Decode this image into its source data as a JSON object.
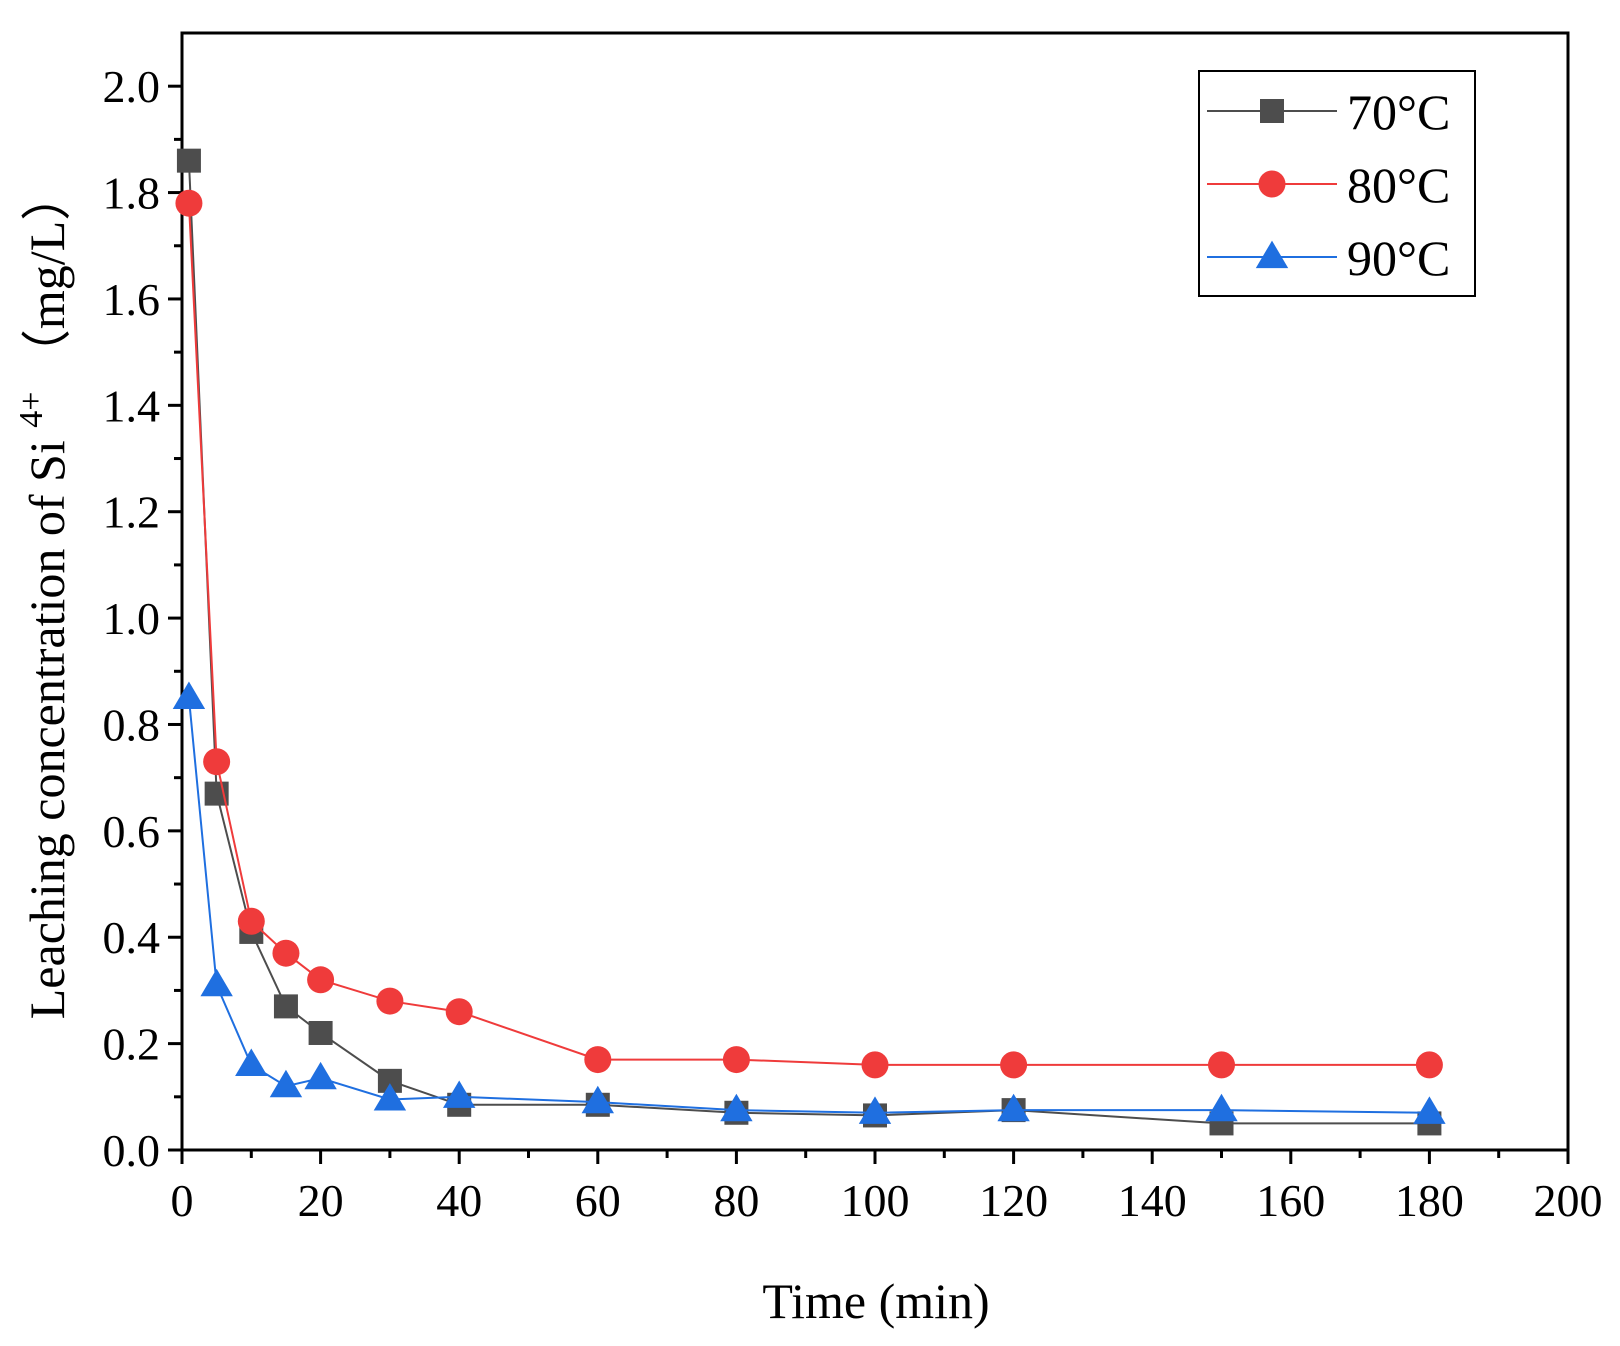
{
  "chart_data": {
    "type": "line",
    "title": "",
    "xlabel": "Time (min)",
    "ylabel": {
      "main": "Leaching concentration of Si",
      "superscript": "4+",
      "unit": "（mg/L）"
    },
    "xlim": [
      0,
      200
    ],
    "ylim": [
      0,
      2.1
    ],
    "xticks": [
      0,
      20,
      40,
      60,
      80,
      100,
      120,
      140,
      160,
      180,
      200
    ],
    "xtick_labels": [
      "0",
      "20",
      "40",
      "60",
      "80",
      "100",
      "120",
      "140",
      "160",
      "180",
      "200"
    ],
    "yticks": [
      0.0,
      0.2,
      0.4,
      0.6,
      0.8,
      1.0,
      1.2,
      1.4,
      1.6,
      1.8,
      2.0
    ],
    "ytick_labels": [
      "0.0",
      "0.2",
      "0.4",
      "0.6",
      "0.8",
      "1.0",
      "1.2",
      "1.4",
      "1.6",
      "1.8",
      "2.0"
    ],
    "grid": false,
    "legend_position": "top-right",
    "series": [
      {
        "name": "70°C",
        "color": "#4d4d4d",
        "marker": "square",
        "x": [
          1,
          5,
          10,
          15,
          20,
          30,
          40,
          60,
          80,
          100,
          120,
          150,
          180
        ],
        "y": [
          1.86,
          0.67,
          0.41,
          0.27,
          0.22,
          0.13,
          0.085,
          0.085,
          0.07,
          0.065,
          0.075,
          0.05,
          0.05
        ]
      },
      {
        "name": "80°C",
        "color": "#ef3b3b",
        "marker": "circle",
        "x": [
          1,
          5,
          10,
          15,
          20,
          30,
          40,
          60,
          80,
          100,
          120,
          150,
          180
        ],
        "y": [
          1.78,
          0.73,
          0.43,
          0.37,
          0.32,
          0.28,
          0.26,
          0.17,
          0.17,
          0.16,
          0.16,
          0.16,
          0.16
        ]
      },
      {
        "name": "90°C",
        "color": "#1f6fe0",
        "marker": "triangle",
        "x": [
          1,
          5,
          10,
          15,
          20,
          30,
          40,
          60,
          80,
          100,
          120,
          150,
          180
        ],
        "y": [
          0.85,
          0.31,
          0.16,
          0.12,
          0.135,
          0.095,
          0.1,
          0.09,
          0.075,
          0.07,
          0.075,
          0.075,
          0.07
        ]
      }
    ]
  }
}
